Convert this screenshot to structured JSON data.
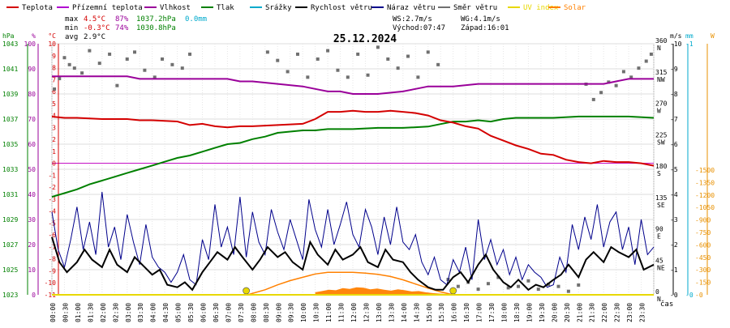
{
  "chart_data": {
    "type": "line",
    "title": "25.12.2024",
    "xlabel": "čas",
    "legend_position": "top",
    "legend": [
      {
        "name": "Teplota",
        "color": "#d40000"
      },
      {
        "name": "Přízemní teplota",
        "color": "#b000d0"
      },
      {
        "name": "Vlhkost",
        "color": "#9a009a"
      },
      {
        "name": "Tlak",
        "color": "#008000"
      },
      {
        "name": "Srážky",
        "color": "#00aacc"
      },
      {
        "name": "Rychlost větru",
        "color": "#000000"
      },
      {
        "name": "Náraz větru",
        "color": "#00008b"
      },
      {
        "name": "Směr větru",
        "color": "#707070"
      },
      {
        "name": "UV index",
        "color": "#e8d800"
      },
      {
        "name": "Solar",
        "color": "#ff8000"
      }
    ],
    "stats": {
      "max_label": "max",
      "max_temp": "4.5°C",
      "max_hum": "87%",
      "max_press": "1037.2hPa",
      "max_rain": "0.0mm",
      "min_label": "min",
      "min_temp": "-0.3°C",
      "min_hum": "74%",
      "min_press": "1030.8hPa",
      "avg_label": "avg",
      "avg_temp": "2.9°C",
      "ws": "WS:2.7m/s",
      "wg": "WG:4.1m/s",
      "sunrise": "Východ:07:47",
      "sunset": "Západ:16:01"
    },
    "axes": {
      "hpa": {
        "unit": "hPa",
        "ticks": [
          "1023",
          "1025",
          "1027",
          "1029",
          "1031",
          "1033",
          "1035",
          "1037",
          "1039",
          "1041",
          "1043"
        ],
        "range": [
          1023,
          1043
        ],
        "color": "#008000"
      },
      "pct": {
        "unit": "%",
        "ticks": [
          "0",
          "10",
          "20",
          "30",
          "40",
          "50",
          "60",
          "70",
          "80",
          "90",
          "100"
        ],
        "range": [
          0,
          100
        ],
        "color": "#9a009a"
      },
      "degc": {
        "unit": "°C",
        "ticks": [
          "-11",
          "-10",
          "-9",
          "-8",
          "-7",
          "-6",
          "-5",
          "-4",
          "-3",
          "-2",
          "-1",
          "0",
          "1",
          "2",
          "3",
          "4",
          "5",
          "6",
          "7",
          "8",
          "9",
          "10"
        ],
        "range": [
          -11,
          10
        ],
        "color": "#d40000"
      },
      "dir": {
        "ticks": [
          "0\nN",
          "45\nNE",
          "90\nE",
          "135\nSE",
          "180\nS",
          "225\nSW",
          "270\nW",
          "315\nNW",
          "360\nN"
        ],
        "range": [
          0,
          360
        ],
        "color": "#000000"
      },
      "ms": {
        "unit": "m/s",
        "ticks": [
          "0",
          "1",
          "2",
          "3",
          "4",
          "5",
          "6",
          "7",
          "8",
          "9",
          "10"
        ],
        "range": [
          0,
          10
        ],
        "color": "#000000"
      },
      "mm": {
        "unit": "mm",
        "ticks": [
          "0",
          "1"
        ],
        "range": [
          0,
          1
        ],
        "color": "#00aacc"
      },
      "w": {
        "unit": "W",
        "ticks": [
          "0",
          "150",
          "300",
          "450",
          "600",
          "750",
          "900",
          "1050",
          "1200",
          "1350",
          "1500"
        ],
        "range": [
          0,
          1500
        ],
        "color": "#e89000"
      }
    },
    "x_ticks": [
      "00:00",
      "00:30",
      "01:00",
      "01:30",
      "02:00",
      "02:30",
      "03:00",
      "03:30",
      "04:00",
      "04:30",
      "05:00",
      "05:30",
      "06:00",
      "06:30",
      "07:00",
      "07:30",
      "08:00",
      "08:30",
      "09:00",
      "09:30",
      "10:00",
      "10:30",
      "11:00",
      "11:30",
      "12:00",
      "12:30",
      "13:00",
      "13:30",
      "14:00",
      "14:30",
      "15:00",
      "15:30",
      "16:00",
      "16:30",
      "17:00",
      "17:30",
      "18:00",
      "18:30",
      "19:00",
      "19:30",
      "20:00",
      "20:30",
      "21:00",
      "21:30",
      "22:00",
      "22:30",
      "23:00",
      "23:30"
    ],
    "x_range_hours": [
      0,
      24
    ],
    "reference_line_degc": 0,
    "series": [
      {
        "name": "Teplota",
        "unit": "°C",
        "x": [
          0,
          0.5,
          1,
          2,
          3,
          3.5,
          4,
          5,
          5.5,
          6,
          6.5,
          7,
          7.5,
          8,
          9,
          10,
          10.5,
          11,
          11.5,
          12,
          12.5,
          13,
          13.5,
          14,
          14.5,
          15,
          15.5,
          16,
          16.5,
          17,
          17.5,
          18,
          18.5,
          19,
          19.5,
          20,
          20.5,
          21,
          21.5,
          22,
          22.5,
          23,
          23.5,
          24
        ],
        "values": [
          3.9,
          3.8,
          3.8,
          3.7,
          3.7,
          3.6,
          3.6,
          3.5,
          3.2,
          3.3,
          3.1,
          3.0,
          3.1,
          3.1,
          3.2,
          3.3,
          3.7,
          4.3,
          4.3,
          4.4,
          4.3,
          4.3,
          4.4,
          4.3,
          4.2,
          4.0,
          3.6,
          3.4,
          3.1,
          2.9,
          2.3,
          1.9,
          1.5,
          1.2,
          0.8,
          0.7,
          0.3,
          0.1,
          0.0,
          0.2,
          0.1,
          0.1,
          0.0,
          -0.2
        ]
      },
      {
        "name": "Vlhkost",
        "unit": "%",
        "x": [
          0,
          3,
          3.5,
          5,
          6,
          7,
          7.5,
          8,
          9,
          10,
          10.5,
          11,
          11.5,
          12,
          13,
          14,
          14.5,
          15,
          16,
          17,
          18,
          19,
          20,
          21,
          22,
          22.5,
          23,
          24
        ],
        "values": [
          87,
          87,
          86,
          86,
          86,
          86,
          85,
          85,
          84,
          83,
          82,
          81,
          81,
          80,
          80,
          81,
          82,
          83,
          83,
          84,
          84,
          84,
          84,
          84,
          84,
          85,
          86,
          86
        ]
      },
      {
        "name": "Tlak",
        "unit": "hPa",
        "x": [
          0,
          0.5,
          1,
          1.5,
          2,
          2.5,
          3,
          3.5,
          4,
          4.5,
          5,
          5.5,
          6,
          6.5,
          7,
          7.5,
          8,
          8.5,
          9,
          9.5,
          10,
          10.5,
          11,
          12,
          13,
          14,
          15,
          15.5,
          16,
          16.5,
          17,
          17.5,
          18,
          18.5,
          19,
          20,
          21,
          22,
          23,
          24
        ],
        "values": [
          1030.8,
          1031.1,
          1031.4,
          1031.8,
          1032.1,
          1032.4,
          1032.7,
          1033.0,
          1033.3,
          1033.6,
          1033.9,
          1034.1,
          1034.4,
          1034.7,
          1035.0,
          1035.1,
          1035.4,
          1035.6,
          1035.9,
          1036.0,
          1036.1,
          1036.1,
          1036.2,
          1036.2,
          1036.3,
          1036.3,
          1036.4,
          1036.6,
          1036.8,
          1036.8,
          1036.9,
          1036.8,
          1037.0,
          1037.1,
          1037.1,
          1037.1,
          1037.2,
          1037.2,
          1037.2,
          1037.1
        ]
      },
      {
        "name": "Rychlost větru",
        "unit": "m/s",
        "x": [
          0,
          0.3,
          0.6,
          1,
          1.3,
          1.6,
          2,
          2.3,
          2.6,
          3,
          3.3,
          3.6,
          4,
          4.3,
          4.6,
          5,
          5.3,
          5.6,
          6,
          6.3,
          6.6,
          7,
          7.3,
          7.6,
          8,
          8.3,
          8.6,
          9,
          9.3,
          9.6,
          10,
          10.3,
          10.6,
          11,
          11.3,
          11.6,
          12,
          12.3,
          12.6,
          13,
          13.3,
          13.6,
          14,
          14.3,
          14.6,
          15,
          15.3,
          15.6,
          16,
          16.3,
          16.6,
          17,
          17.3,
          17.6,
          18,
          18.3,
          18.6,
          19,
          19.3,
          19.6,
          20,
          20.3,
          20.6,
          21,
          21.3,
          21.6,
          22,
          22.3,
          22.6,
          23,
          23.3,
          23.6,
          24
        ],
        "values": [
          2.3,
          1.3,
          0.9,
          1.3,
          1.8,
          1.4,
          1.1,
          1.8,
          1.2,
          0.9,
          1.5,
          1.2,
          0.8,
          1.0,
          0.4,
          0.3,
          0.5,
          0.2,
          0.9,
          1.3,
          1.7,
          1.4,
          1.9,
          1.5,
          1.0,
          1.4,
          1.9,
          1.5,
          1.7,
          1.3,
          1.0,
          2.1,
          1.6,
          1.2,
          1.8,
          1.4,
          1.6,
          1.9,
          1.3,
          1.1,
          1.8,
          1.4,
          1.3,
          0.9,
          0.6,
          0.3,
          0.2,
          0.2,
          0.7,
          0.9,
          0.5,
          1.2,
          1.6,
          1.0,
          0.5,
          0.3,
          0.6,
          0.2,
          0.4,
          0.3,
          0.6,
          0.8,
          1.2,
          0.7,
          1.4,
          1.7,
          1.3,
          1.9,
          1.7,
          1.5,
          1.8,
          1.0,
          1.2
        ]
      },
      {
        "name": "Náraz větru",
        "unit": "m/s",
        "x": [
          0,
          0.25,
          0.5,
          0.75,
          1,
          1.25,
          1.5,
          1.75,
          2,
          2.25,
          2.5,
          2.75,
          3,
          3.25,
          3.5,
          3.75,
          4,
          4.25,
          4.5,
          4.75,
          5,
          5.25,
          5.5,
          5.75,
          6,
          6.25,
          6.5,
          6.75,
          7,
          7.25,
          7.5,
          7.75,
          8,
          8.25,
          8.5,
          8.75,
          9,
          9.25,
          9.5,
          9.75,
          10,
          10.25,
          10.5,
          10.75,
          11,
          11.25,
          11.5,
          11.75,
          12,
          12.25,
          12.5,
          12.75,
          13,
          13.25,
          13.5,
          13.75,
          14,
          14.25,
          14.5,
          14.75,
          15,
          15.25,
          15.5,
          15.75,
          16,
          16.25,
          16.5,
          16.75,
          17,
          17.25,
          17.5,
          17.75,
          18,
          18.25,
          18.5,
          18.75,
          19,
          19.25,
          19.5,
          19.75,
          20,
          20.25,
          20.5,
          20.75,
          21,
          21.25,
          21.5,
          21.75,
          22,
          22.25,
          22.5,
          22.75,
          23,
          23.25,
          23.5,
          23.75,
          24
        ],
        "values": [
          3.3,
          1.8,
          1.1,
          2.2,
          3.5,
          1.8,
          2.9,
          1.6,
          4.1,
          1.9,
          2.7,
          1.4,
          3.2,
          2.1,
          1.2,
          2.8,
          1.5,
          1.1,
          0.9,
          0.5,
          0.9,
          1.6,
          0.6,
          0.4,
          2.2,
          1.4,
          3.6,
          1.9,
          2.7,
          1.6,
          3.9,
          1.5,
          3.3,
          2.1,
          1.6,
          3.4,
          2.5,
          1.8,
          3.0,
          2.2,
          1.4,
          3.8,
          2.6,
          1.9,
          3.4,
          2.0,
          2.8,
          3.7,
          2.4,
          1.9,
          3.4,
          2.7,
          1.6,
          3.1,
          2.0,
          3.5,
          2.1,
          1.8,
          2.4,
          1.3,
          0.8,
          1.5,
          0.6,
          0.4,
          1.4,
          0.9,
          1.9,
          0.6,
          3.0,
          1.4,
          2.2,
          1.2,
          1.8,
          0.8,
          1.5,
          0.6,
          1.2,
          0.9,
          0.7,
          0.3,
          0.4,
          1.5,
          0.9,
          2.8,
          1.8,
          3.1,
          2.2,
          3.6,
          1.9,
          2.9,
          3.3,
          1.8,
          2.7,
          1.2,
          3.0,
          1.6,
          1.9
        ]
      },
      {
        "name": "Směr větru",
        "unit": "°",
        "x": [
          0.1,
          0.3,
          0.5,
          0.7,
          0.9,
          1.2,
          1.5,
          1.9,
          2.3,
          2.6,
          3.0,
          3.3,
          3.7,
          4.1,
          4.4,
          4.8,
          5.2,
          5.5,
          8.6,
          9.0,
          9.4,
          9.8,
          10.2,
          10.6,
          11.0,
          11.4,
          11.8,
          12.2,
          12.6,
          13.0,
          13.4,
          13.8,
          14.2,
          14.6,
          15.0,
          15.4,
          15.8,
          16.2,
          16.6,
          17.0,
          17.4,
          17.8,
          18.2,
          18.6,
          19.0,
          19.4,
          19.8,
          20.2,
          20.6,
          21.0,
          21.3,
          21.6,
          21.9,
          22.2,
          22.5,
          22.8,
          23.1,
          23.4,
          23.7,
          23.9
        ],
        "values": [
          295,
          310,
          340,
          330,
          325,
          318,
          350,
          332,
          345,
          300,
          338,
          348,
          322,
          312,
          338,
          330,
          325,
          345,
          348,
          336,
          320,
          345,
          312,
          338,
          350,
          322,
          312,
          345,
          315,
          355,
          338,
          325,
          342,
          312,
          348,
          330,
          22,
          12,
          18,
          8,
          16,
          25,
          10,
          12,
          20,
          8,
          15,
          12,
          5,
          14,
          302,
          280,
          290,
          305,
          300,
          320,
          312,
          325,
          335,
          345
        ]
      },
      {
        "name": "Solar",
        "unit": "W",
        "x": [
          7.8,
          8.5,
          9,
          9.5,
          10,
          10.5,
          11,
          11.5,
          12,
          12.5,
          13,
          13.5,
          14,
          14.5,
          15,
          15.5,
          16
        ],
        "values": [
          0,
          60,
          120,
          170,
          210,
          250,
          270,
          270,
          270,
          260,
          245,
          220,
          180,
          130,
          80,
          35,
          0
        ]
      },
      {
        "name": "UV index",
        "unit": "",
        "x": [
          7.75,
          16.0
        ],
        "values": [
          0,
          0
        ]
      }
    ],
    "solar_measured_hours": [
      10.5,
      16.0
    ],
    "solar_measured_values": [
      30,
      45,
      60,
      55,
      80,
      70,
      90,
      85,
      65,
      75,
      60,
      50,
      65,
      55,
      40,
      45,
      30,
      20,
      15,
      10,
      5
    ]
  }
}
